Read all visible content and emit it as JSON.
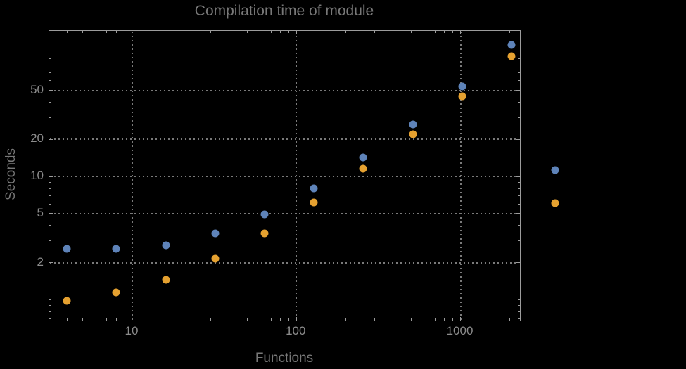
{
  "theme": {
    "background": "#000000",
    "frame_color": "#9c9c9c",
    "grid_color": "#7a7a7a",
    "tick_label_color": "#8c8c8c",
    "title_color": "#787878",
    "axis_label_color": "#787878",
    "series1_color": "#5e83b9",
    "series2_color": "#e5a130"
  },
  "title": "Compilation time of module",
  "x_axis_label": "Functions",
  "y_axis_label": "Seconds",
  "chart_data": {
    "type": "scatter",
    "title": "Compilation time of module",
    "xlabel": "Functions",
    "ylabel": "Seconds",
    "xscale": "log",
    "yscale": "log",
    "grid": true,
    "legend_position": "right-outside",
    "x": [
      4,
      8,
      16,
      32,
      64,
      128,
      256,
      512,
      1024,
      2048
    ],
    "series": [
      {
        "name": "series-1-blue",
        "color": "#5e83b9",
        "values": [
          2.6,
          2.6,
          2.75,
          3.45,
          4.95,
          8.0,
          14.2,
          26.5,
          54,
          117
        ]
      },
      {
        "name": "series-2-orange",
        "color": "#e5a130",
        "values": [
          0.98,
          1.15,
          1.45,
          2.15,
          3.45,
          6.2,
          11.6,
          22,
          45,
          95
        ]
      }
    ],
    "axes": {
      "xmin": 3.12,
      "xmax": 2348,
      "ymin": 0.66,
      "ymax": 152
    },
    "xticks": {
      "major": [
        10,
        100,
        1000
      ],
      "labels": [
        "10",
        "100",
        "1000"
      ],
      "minor": [
        4,
        5,
        6,
        7,
        8,
        9,
        20,
        30,
        40,
        50,
        60,
        70,
        80,
        90,
        200,
        300,
        400,
        500,
        600,
        700,
        800,
        900,
        2000
      ]
    },
    "yticks": {
      "major": [
        2,
        5,
        10,
        20,
        50
      ],
      "labels": [
        "2",
        "5",
        "10",
        "20",
        "50"
      ],
      "minor": [
        0.7,
        0.8,
        0.9,
        1,
        1.5,
        3,
        4,
        6,
        7,
        8,
        9,
        15,
        30,
        40,
        60,
        70,
        80,
        90,
        100,
        150
      ]
    }
  },
  "legend": {
    "items": [
      {
        "label": "",
        "color": "#5e83b9"
      },
      {
        "label": "",
        "color": "#e5a130"
      }
    ]
  }
}
